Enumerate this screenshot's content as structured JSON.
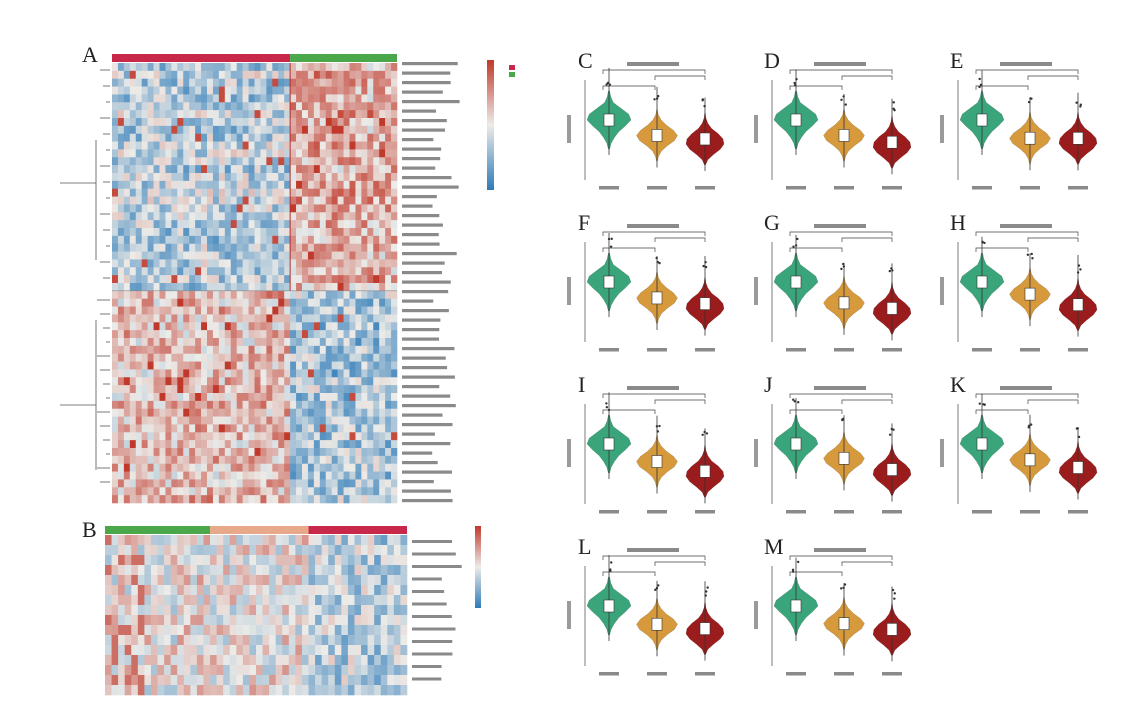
{
  "figure": {
    "panels": [
      {
        "letter": "A"
      },
      {
        "letter": "B"
      },
      {
        "letter": "C"
      },
      {
        "letter": "D"
      },
      {
        "letter": "E"
      },
      {
        "letter": "F"
      },
      {
        "letter": "G"
      },
      {
        "letter": "H"
      },
      {
        "letter": "I"
      },
      {
        "letter": "J"
      },
      {
        "letter": "K"
      },
      {
        "letter": "L"
      },
      {
        "letter": "M"
      }
    ]
  },
  "colors": {
    "group1": "#3aa57a",
    "group2": "#d69a3c",
    "group3": "#9b1c1c",
    "heat_high": "#c0392b",
    "heat_low": "#2e7bb8",
    "heat_mid": "#ecebe8",
    "annot_red": "#c8284a",
    "annot_green": "#4aa84a"
  },
  "violin_panels": [
    {
      "letter": "C",
      "title": ""
    },
    {
      "letter": "D",
      "title": ""
    },
    {
      "letter": "E",
      "title": ""
    },
    {
      "letter": "F",
      "title": ""
    },
    {
      "letter": "G",
      "title": ""
    },
    {
      "letter": "H",
      "title": ""
    },
    {
      "letter": "I",
      "title": ""
    },
    {
      "letter": "J",
      "title": ""
    },
    {
      "letter": "K",
      "title": ""
    },
    {
      "letter": "L",
      "title": ""
    },
    {
      "letter": "M",
      "title": ""
    }
  ]
}
